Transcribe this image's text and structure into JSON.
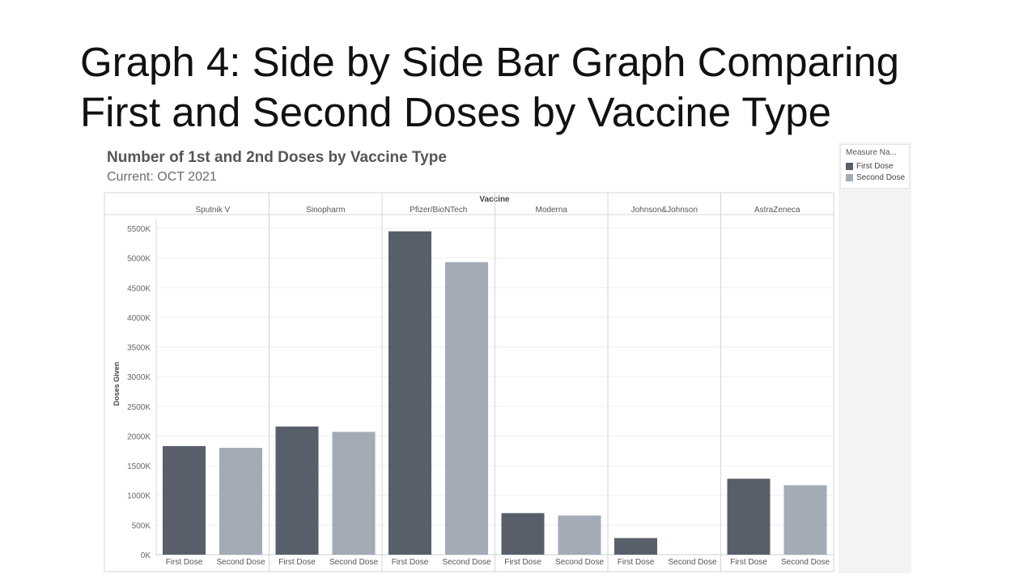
{
  "slide": {
    "title_line1": "Graph 4: Side by Side Bar Graph Comparing",
    "title_line2": "First and Second Doses by Vaccine Type"
  },
  "chart_header": {
    "title": "Number of 1st and 2nd Doses by Vaccine Type",
    "subtitle": "Current: OCT 2021"
  },
  "legend": {
    "title": "Measure Na...",
    "items": [
      {
        "label": "First Dose",
        "color": "#585f6b"
      },
      {
        "label": "Second Dose",
        "color": "#a2abb6"
      }
    ]
  },
  "chart_data": {
    "type": "bar",
    "title": "Number of 1st and 2nd Doses by Vaccine Type",
    "subtitle": "Current: OCT 2021",
    "column_header": "Vaccine",
    "ylabel": "Doses Given",
    "ylim": [
      0,
      5500
    ],
    "y_ticks": [
      0,
      500,
      1000,
      1500,
      2000,
      2500,
      3000,
      3500,
      4000,
      4500,
      5000,
      5500
    ],
    "y_tick_labels": [
      "0K",
      "500K",
      "1000K",
      "1500K",
      "2000K",
      "2500K",
      "3000K",
      "3500K",
      "4000K",
      "4500K",
      "5000K",
      "5500K"
    ],
    "grid": true,
    "legend_position": "right",
    "categories": [
      "Sputnik V",
      "Sinopharm",
      "Pfizer/BioNTech",
      "Moderna",
      "Johnson&Johnson",
      "AstraZeneca"
    ],
    "sub_categories": [
      "First Dose",
      "Second Dose"
    ],
    "series": [
      {
        "name": "First Dose",
        "color": "#585f6b",
        "values": [
          1830,
          2160,
          5450,
          700,
          280,
          1280
        ]
      },
      {
        "name": "Second Dose",
        "color": "#a2abb6",
        "values": [
          1800,
          2070,
          4930,
          660,
          0,
          1170
        ]
      }
    ]
  }
}
